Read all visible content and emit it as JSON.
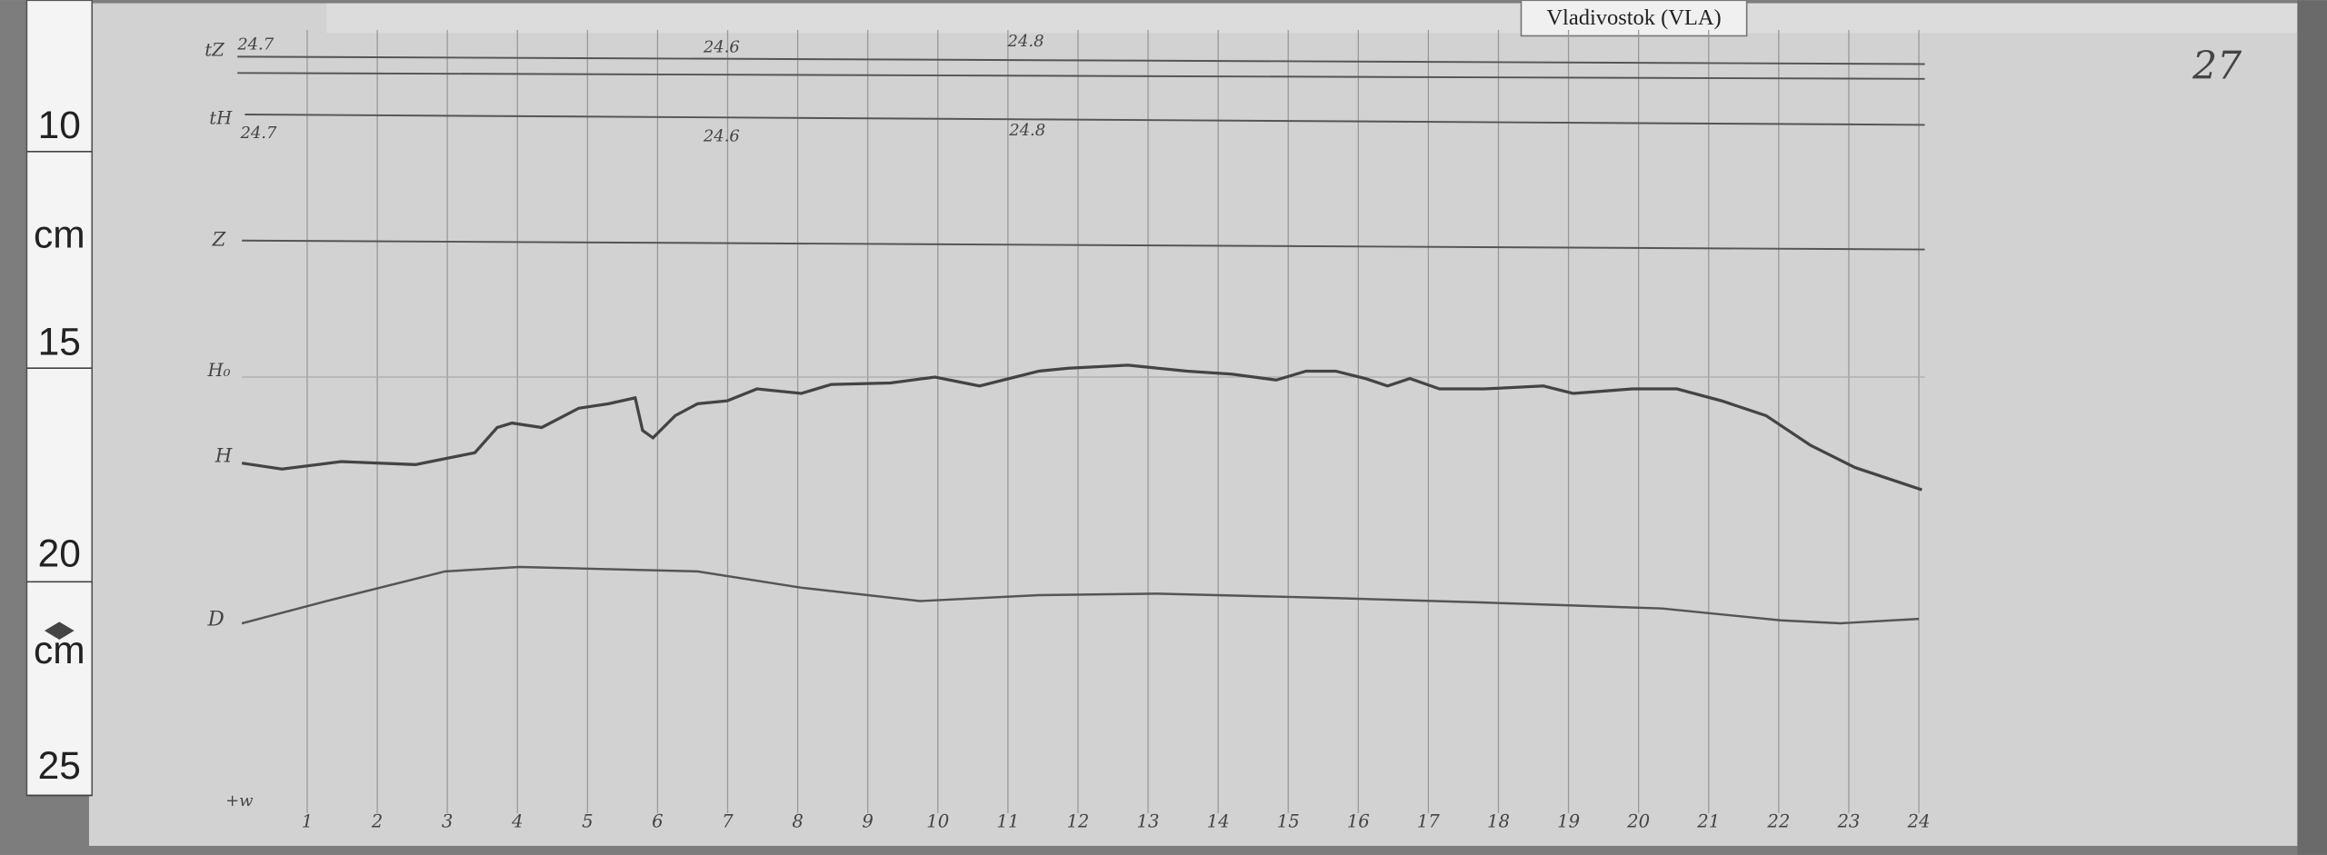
{
  "header": {
    "station": "Vladivostok (VLA)",
    "page": "27"
  },
  "ruler": {
    "labels": [
      "10",
      "cm",
      "15",
      "20",
      "cm",
      "25"
    ]
  },
  "traces": {
    "labels": [
      "tZ",
      "tH",
      "Z",
      "H₀",
      "H",
      "D",
      "+w"
    ]
  },
  "temperatures": {
    "top": [
      "24.7",
      "24.6",
      "24.8"
    ],
    "bottom": [
      "24.7",
      "24.6",
      "24.8"
    ]
  },
  "hours": [
    1,
    2,
    3,
    4,
    5,
    6,
    7,
    8,
    9,
    10,
    11,
    12,
    13,
    14,
    15,
    16,
    17,
    18,
    19,
    20,
    21,
    22,
    23,
    24
  ]
}
